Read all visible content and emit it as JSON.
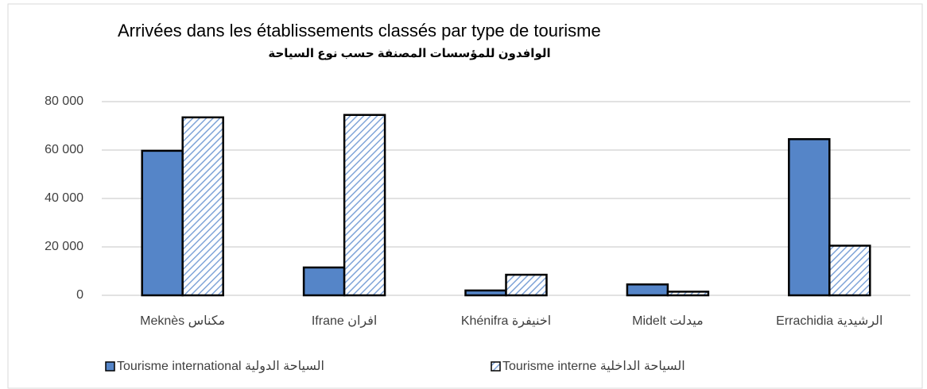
{
  "chart_data": {
    "type": "bar",
    "title": "Arrivées dans les établissements classés par type de tourisme",
    "subtitle": "الوافدون  للمؤسسات المصنفة حسب نوع السياحة",
    "categories": [
      "Meknès  مكناس",
      "Ifrane  افران",
      "Khénifra اخنيفرة",
      "Midelt ميدلت",
      "Errachidia الرشيدية"
    ],
    "series": [
      {
        "name": "Tourisme international  السياحة الدولية",
        "color": "#5585c8",
        "pattern": "solid",
        "values": [
          59700,
          11500,
          2000,
          4500,
          64500
        ]
      },
      {
        "name": "Tourisme interne  السياحة الداخلية",
        "color": "#7fa4d8",
        "pattern": "hatch",
        "values": [
          73500,
          74500,
          8500,
          1500,
          20500
        ]
      }
    ],
    "ylim": [
      0,
      80000
    ],
    "yticks": [
      0,
      {
        "value": 20000,
        "label": "20 000"
      },
      {
        "value": 40000,
        "label": "40 000"
      },
      {
        "value": 60000,
        "label": "60 000"
      },
      {
        "value": 80000,
        "label": "80 000"
      }
    ],
    "grid": true,
    "legend": "bottom"
  }
}
